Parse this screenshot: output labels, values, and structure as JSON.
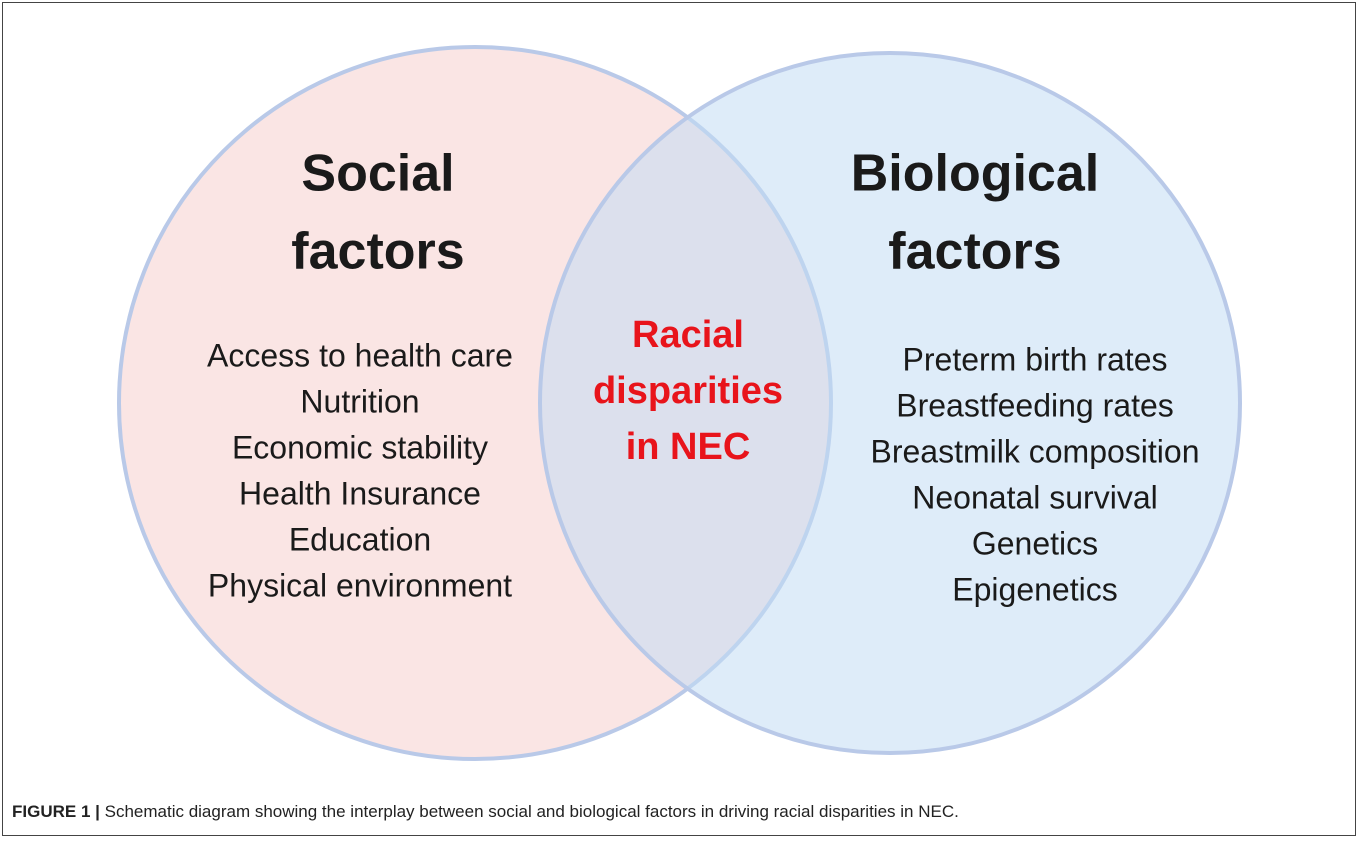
{
  "left": {
    "title": [
      "Social",
      "factors"
    ],
    "items": [
      "Access to health care",
      "Nutrition",
      "Economic stability",
      "Health Insurance",
      "Education",
      "Physical environment"
    ]
  },
  "right": {
    "title": [
      "Biological",
      "factors"
    ],
    "items": [
      "Preterm birth rates",
      "Breastfeeding rates",
      "Breastmilk composition",
      "Neonatal survival",
      "Genetics",
      "Epigenetics"
    ]
  },
  "center": {
    "lines": [
      "Racial",
      "disparities",
      "in NEC"
    ]
  },
  "caption": {
    "label": "FIGURE 1 |",
    "text": " Schematic diagram showing the interplay between social and biological factors in driving racial disparities in NEC."
  }
}
